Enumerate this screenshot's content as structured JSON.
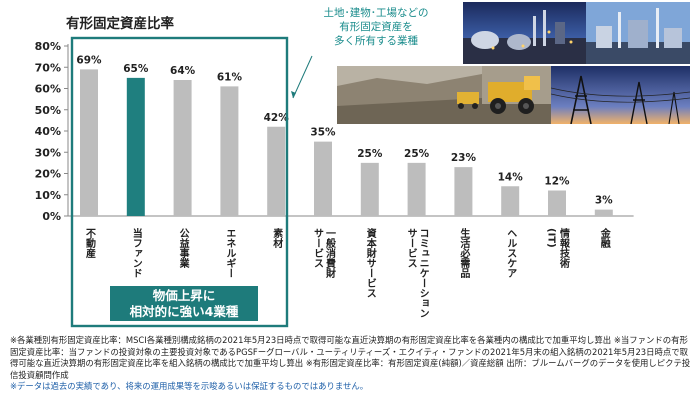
{
  "title": "有形固定資産比率",
  "callout": [
    "土地･建物･工場などの",
    "有形固定資産を",
    "多く所有する業種"
  ],
  "badge": [
    "物価上昇に",
    "相対的に強い4業種"
  ],
  "colors": {
    "bar_gray": "#bdbdbd",
    "bar_highlight": "#1f7f7f",
    "frame": "#1e7b7b",
    "callout_text": "#1a8c8c",
    "disclaimer": "#1e5fa8"
  },
  "chart_data": {
    "type": "bar",
    "title": "有形固定資産比率",
    "categories": [
      "不動産",
      "当ファンド",
      "公益事業",
      "エネルギー",
      "素材",
      "一般消費財サービス",
      "資本財サービス",
      "コミュニケーションサービス",
      "生活必需品",
      "ヘルスケア",
      "情報技術(IT)",
      "金融"
    ],
    "category_lines": [
      [
        "不動産"
      ],
      [
        "当ファンド"
      ],
      [
        "公益事業"
      ],
      [
        "エネルギー"
      ],
      [
        "素材"
      ],
      [
        "一般消費財",
        "サービス"
      ],
      [
        "資本財サービス"
      ],
      [
        "コミュニケーション",
        "サービス"
      ],
      [
        "生活必需品"
      ],
      [
        "ヘルスケア"
      ],
      [
        "情報技術",
        "(IT)"
      ],
      [
        "金融"
      ]
    ],
    "values": [
      69,
      65,
      64,
      61,
      42,
      35,
      25,
      25,
      23,
      14,
      12,
      3
    ],
    "value_labels": [
      "69%",
      "65%",
      "64%",
      "61%",
      "42%",
      "35%",
      "25%",
      "25%",
      "23%",
      "14%",
      "12%",
      "3%"
    ],
    "highlight_index": 1,
    "framed_count": 4,
    "ylim": [
      0,
      80
    ],
    "yticks": [
      0,
      10,
      20,
      30,
      40,
      50,
      60,
      70,
      80
    ],
    "ytick_labels": [
      "0%",
      "10%",
      "20%",
      "30%",
      "40%",
      "50%",
      "60%",
      "70%",
      "80%"
    ],
    "grid": false,
    "legend": "none"
  },
  "photos": [
    {
      "name": "industrial-plant-photo"
    },
    {
      "name": "mining-truck-photo"
    },
    {
      "name": "power-lines-photo"
    }
  ],
  "footnotes": [
    "※各業種別有形固定資産比率：MSCI各業種別構成銘柄の2021年5月23日時点で取得可能な直近決算期の有形固定資産比率を各業種内の構成比で加重平均し算出 ※当ファンドの有形固定資産比率：当ファンドの投資対象の主要投資対象であるPGSFーグローバル・ユーティリティーズ・エクイティ・ファンドの2021年5月末の組入銘柄の2021年5月23日時点で取得可能な直近決算期の有形固定資産比率を組入銘柄の構成比で加重平均し算出 ※有形固定資産比率：有形固定資産(純額)／資産総額 出所：ブルームバーグのデータを使用しピクテ投信投資顧問作成"
  ],
  "disclaimer": "※データは過去の実績であり、将来の運用成果等を示唆あるいは保証するものではありません。"
}
